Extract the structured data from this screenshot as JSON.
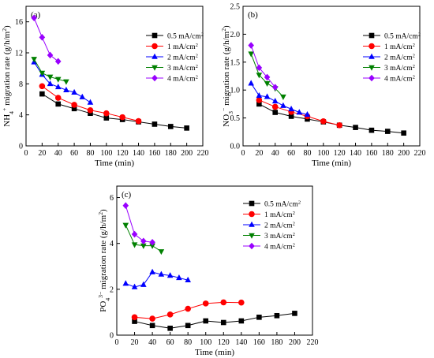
{
  "chart_data": [
    {
      "type": "line",
      "panel_label": "(a)",
      "xlabel": "Time (min)",
      "ylabel": "NH₄⁺ migration rate (g/h/m²)",
      "xlim": [
        0,
        220
      ],
      "ylim": [
        0,
        18
      ],
      "xticks": [
        0,
        20,
        40,
        60,
        80,
        100,
        120,
        140,
        160,
        180,
        200,
        220
      ],
      "yticks": [
        0,
        4,
        8,
        12,
        16
      ],
      "legend_position": "top-right",
      "series": [
        {
          "name": "0.5 mA/cm²",
          "color": "#000000",
          "marker": "square",
          "x": [
            20,
            40,
            60,
            80,
            100,
            120,
            140,
            160,
            180,
            200
          ],
          "y": [
            6.7,
            5.4,
            4.8,
            4.2,
            3.6,
            3.4,
            3.1,
            2.8,
            2.5,
            2.3
          ]
        },
        {
          "name": "1 mA/cm²",
          "color": "#ff0000",
          "marker": "circle",
          "x": [
            20,
            40,
            60,
            80,
            100,
            120,
            140
          ],
          "y": [
            7.7,
            6.2,
            5.3,
            4.6,
            4.2,
            3.7,
            3.2
          ]
        },
        {
          "name": "2 mA/cm²",
          "color": "#0000ff",
          "marker": "triangle-up",
          "x": [
            10,
            20,
            30,
            40,
            50,
            60,
            70,
            80
          ],
          "y": [
            10.8,
            9.2,
            8.0,
            7.6,
            7.2,
            6.9,
            6.3,
            5.6
          ]
        },
        {
          "name": "3 mA/cm²",
          "color": "#008000",
          "marker": "triangle-down",
          "x": [
            10,
            20,
            30,
            40,
            50
          ],
          "y": [
            11.2,
            9.4,
            8.9,
            8.6,
            8.3
          ]
        },
        {
          "name": "4 mA/cm²",
          "color": "#9900ff",
          "marker": "diamond",
          "x": [
            10,
            20,
            30,
            40
          ],
          "y": [
            16.5,
            14.0,
            11.7,
            10.9
          ]
        }
      ]
    },
    {
      "type": "line",
      "panel_label": "(b)",
      "xlabel": "Time (min)",
      "ylabel": "NO₃⁻ migration rate (g/h/m²)",
      "xlim": [
        0,
        220
      ],
      "ylim": [
        0,
        2.5
      ],
      "xticks": [
        0,
        20,
        40,
        60,
        80,
        100,
        120,
        140,
        160,
        180,
        200,
        220
      ],
      "yticks": [
        0,
        0.5,
        1.0,
        1.5,
        2.0,
        2.5
      ],
      "ytick_labels": [
        "0.0",
        "0.5",
        "1.0",
        "1.5",
        "2.0",
        "2.5"
      ],
      "legend_position": "top-right",
      "series": [
        {
          "name": "0.5 mA/cm²",
          "color": "#000000",
          "marker": "square",
          "x": [
            20,
            40,
            60,
            80,
            100,
            120,
            140,
            160,
            180,
            200
          ],
          "y": [
            0.75,
            0.6,
            0.53,
            0.48,
            0.43,
            0.37,
            0.33,
            0.28,
            0.26,
            0.23
          ]
        },
        {
          "name": "1 mA/cm²",
          "color": "#ff0000",
          "marker": "circle",
          "x": [
            20,
            40,
            60,
            80,
            100,
            120
          ],
          "y": [
            0.82,
            0.7,
            0.61,
            0.53,
            0.44,
            0.37
          ]
        },
        {
          "name": "2 mA/cm²",
          "color": "#0000ff",
          "marker": "triangle-up",
          "x": [
            10,
            20,
            30,
            40,
            50,
            60,
            70,
            80
          ],
          "y": [
            1.12,
            0.9,
            0.88,
            0.8,
            0.72,
            0.66,
            0.6,
            0.56
          ]
        },
        {
          "name": "3 mA/cm²",
          "color": "#008000",
          "marker": "triangle-down",
          "x": [
            10,
            20,
            30,
            40,
            50
          ],
          "y": [
            1.65,
            1.27,
            1.12,
            1.03,
            0.88
          ]
        },
        {
          "name": "4 mA/cm²",
          "color": "#9900ff",
          "marker": "diamond",
          "x": [
            10,
            20,
            30,
            40
          ],
          "y": [
            1.8,
            1.4,
            1.23,
            1.05
          ]
        }
      ]
    },
    {
      "type": "line",
      "panel_label": "(c)",
      "xlabel": "Time (min)",
      "ylabel": "PO₄³⁻ migration rate (g/h/m²)",
      "xlim": [
        0,
        220
      ],
      "ylim": [
        0,
        6.5
      ],
      "xticks": [
        0,
        20,
        40,
        60,
        80,
        100,
        120,
        140,
        160,
        180,
        200,
        220
      ],
      "yticks": [
        0,
        2,
        4,
        6
      ],
      "legend_position": "top-right",
      "series": [
        {
          "name": "0.5 mA/cm²",
          "color": "#000000",
          "marker": "square",
          "x": [
            20,
            40,
            60,
            80,
            100,
            120,
            140,
            160,
            180,
            200
          ],
          "y": [
            0.6,
            0.42,
            0.3,
            0.42,
            0.62,
            0.55,
            0.62,
            0.78,
            0.85,
            0.95
          ]
        },
        {
          "name": "1 mA/cm²",
          "color": "#ff0000",
          "marker": "circle",
          "x": [
            20,
            40,
            60,
            80,
            100,
            120,
            140
          ],
          "y": [
            0.78,
            0.72,
            0.9,
            1.15,
            1.38,
            1.43,
            1.42
          ]
        },
        {
          "name": "2 mA/cm²",
          "color": "#0000ff",
          "marker": "triangle-up",
          "x": [
            10,
            20,
            30,
            40,
            50,
            60,
            70,
            80
          ],
          "y": [
            2.25,
            2.1,
            2.2,
            2.75,
            2.65,
            2.6,
            2.5,
            2.4
          ]
        },
        {
          "name": "3 mA/cm²",
          "color": "#008000",
          "marker": "triangle-down",
          "x": [
            10,
            20,
            30,
            40,
            50
          ],
          "y": [
            4.8,
            3.95,
            3.9,
            3.9,
            3.65
          ]
        },
        {
          "name": "4 mA/cm²",
          "color": "#9900ff",
          "marker": "diamond",
          "x": [
            10,
            20,
            30,
            40
          ],
          "y": [
            5.65,
            4.4,
            4.1,
            4.05
          ]
        }
      ]
    }
  ]
}
